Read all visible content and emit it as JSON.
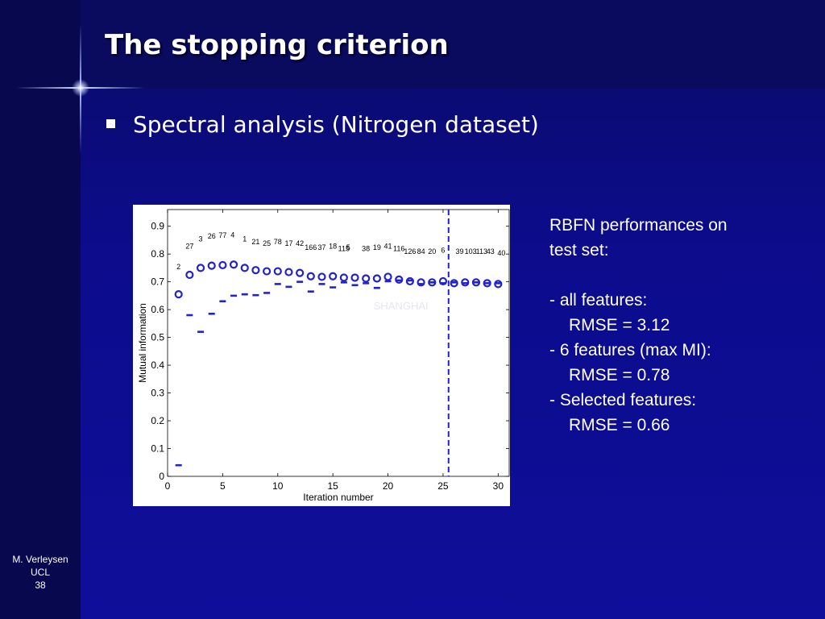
{
  "slide": {
    "title": "The stopping criterion",
    "bullet": "Spectral analysis (Nitrogen dataset)"
  },
  "notes": {
    "heading_line1": "RBFN performances on",
    "heading_line2": "test set:",
    "items": [
      {
        "label": "- all features:",
        "value": "RMSE = 3.12"
      },
      {
        "label": "- 6 features (max MI):",
        "value": "RMSE = 0.78"
      },
      {
        "label": "- Selected features:",
        "value": "RMSE = 0.66"
      }
    ]
  },
  "footer": {
    "author": "M. Verleysen",
    "affiliation": "UCL",
    "page": "38"
  },
  "colors": {
    "background": "#0c0c8a",
    "marker": "#2222cc",
    "text": "#ffffff"
  },
  "chart_data": {
    "type": "scatter",
    "xlabel": "Iteration number",
    "ylabel": "Mutual information",
    "xlim": [
      0,
      31
    ],
    "ylim": [
      0,
      0.96
    ],
    "xticks": [
      0,
      5,
      10,
      15,
      20,
      25,
      30
    ],
    "yticks": [
      0,
      0.1,
      0.2,
      0.3,
      0.4,
      0.5,
      0.6,
      0.7,
      0.8,
      0.9
    ],
    "grid": false,
    "stop_line_x": 25.5,
    "watermark": "SHANGHAI",
    "series": [
      {
        "marker": "circle",
        "x": [
          1,
          2,
          3,
          4,
          5,
          6,
          7,
          8,
          9,
          10,
          11,
          12,
          13,
          14,
          15,
          16,
          17,
          18,
          19,
          20,
          21,
          22,
          23,
          24,
          25,
          26,
          27,
          28,
          29,
          30
        ],
        "y": [
          0.655,
          0.725,
          0.75,
          0.758,
          0.76,
          0.762,
          0.75,
          0.742,
          0.738,
          0.738,
          0.735,
          0.732,
          0.72,
          0.718,
          0.72,
          0.715,
          0.715,
          0.712,
          0.712,
          0.718,
          0.708,
          0.702,
          0.698,
          0.698,
          0.702,
          0.695,
          0.698,
          0.698,
          0.695,
          0.692
        ]
      },
      {
        "marker": "dash",
        "x": [
          1,
          2,
          3,
          4,
          5,
          6,
          7,
          8,
          9,
          10,
          11,
          12,
          13,
          14,
          15,
          16,
          17,
          18,
          19,
          20,
          21,
          22,
          23,
          24,
          25,
          26,
          27,
          28,
          29,
          30
        ],
        "y": [
          0.04,
          0.58,
          0.52,
          0.585,
          0.63,
          0.65,
          0.655,
          0.652,
          0.66,
          0.692,
          0.682,
          0.7,
          0.665,
          0.692,
          0.68,
          0.698,
          0.688,
          0.695,
          0.678,
          0.702,
          0.705,
          0.705,
          0.692,
          0.698,
          0.695,
          0.698,
          0.695,
          0.698,
          0.695,
          0.695
        ]
      }
    ],
    "annotations": [
      {
        "x": 1,
        "y": 0.745,
        "text": "2"
      },
      {
        "x": 2,
        "y": 0.82,
        "text": "27"
      },
      {
        "x": 3,
        "y": 0.845,
        "text": "3"
      },
      {
        "x": 4,
        "y": 0.855,
        "text": "26"
      },
      {
        "x": 5,
        "y": 0.858,
        "text": "77"
      },
      {
        "x": 5.9,
        "y": 0.86,
        "text": "4"
      },
      {
        "x": 7,
        "y": 0.845,
        "text": "1"
      },
      {
        "x": 8,
        "y": 0.835,
        "text": "21"
      },
      {
        "x": 9,
        "y": 0.83,
        "text": "25"
      },
      {
        "x": 10,
        "y": 0.835,
        "text": "78"
      },
      {
        "x": 11,
        "y": 0.83,
        "text": "17"
      },
      {
        "x": 12,
        "y": 0.83,
        "text": "42"
      },
      {
        "x": 13,
        "y": 0.815,
        "text": "166"
      },
      {
        "x": 14,
        "y": 0.815,
        "text": "37"
      },
      {
        "x": 15,
        "y": 0.82,
        "text": "18"
      },
      {
        "x": 16,
        "y": 0.81,
        "text": "115"
      },
      {
        "x": 16.4,
        "y": 0.815,
        "text": "5"
      },
      {
        "x": 18,
        "y": 0.81,
        "text": "38"
      },
      {
        "x": 19,
        "y": 0.815,
        "text": "19"
      },
      {
        "x": 20,
        "y": 0.82,
        "text": "41"
      },
      {
        "x": 21,
        "y": 0.81,
        "text": "116"
      },
      {
        "x": 22,
        "y": 0.8,
        "text": "126"
      },
      {
        "x": 23,
        "y": 0.8,
        "text": "84"
      },
      {
        "x": 24,
        "y": 0.8,
        "text": "20"
      },
      {
        "x": 25,
        "y": 0.805,
        "text": "6"
      },
      {
        "x": 26.5,
        "y": 0.8,
        "text": "39"
      },
      {
        "x": 27.5,
        "y": 0.8,
        "text": "103"
      },
      {
        "x": 28.5,
        "y": 0.8,
        "text": "113"
      },
      {
        "x": 29.3,
        "y": 0.8,
        "text": "43"
      },
      {
        "x": 30.3,
        "y": 0.795,
        "text": "40"
      }
    ]
  }
}
